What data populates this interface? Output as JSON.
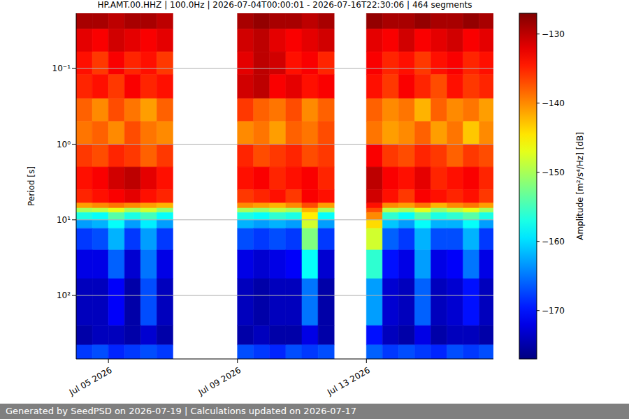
{
  "chart_data": {
    "type": "heatmap",
    "title": "HP.AMT.00.HHZ | 100.0Hz | 2026-07-04T00:00:01 - 2026-07-16T22:30:06 | 464 segments",
    "footer": "Generated by SeedPSD on 2026-07-19 | Calculations updated on 2026-07-17",
    "y_label": "Period [s]",
    "log": "y",
    "grid": "y",
    "xlim": [
      "2026-07-04T00:00",
      "2026-07-16T22:30"
    ],
    "xticks": [
      {
        "value": "2026-07-05T00:00",
        "label": "Jul 05 2026"
      },
      {
        "value": "2026-07-09T00:00",
        "label": "Jul 09 2026"
      },
      {
        "value": "2026-07-13T00:00",
        "label": "Jul 13 2026"
      }
    ],
    "ylim": [
      0.0186,
      690
    ],
    "yticks": [
      {
        "value": 0.1,
        "label": "10⁻¹"
      },
      {
        "value": 1,
        "label": "10⁰"
      },
      {
        "value": 10,
        "label": "10¹"
      },
      {
        "value": 100,
        "label": "10²"
      }
    ],
    "time_edges": [
      "2026-07-04T00:00",
      "2026-07-04T12:00",
      "2026-07-05T00:00",
      "2026-07-05T12:00",
      "2026-07-06T00:00",
      "2026-07-06T12:00",
      "2026-07-07T00:00",
      "2026-07-07T12:00",
      "2026-07-08T00:00",
      "2026-07-08T12:00",
      "2026-07-09T00:00",
      "2026-07-09T12:00",
      "2026-07-10T00:00",
      "2026-07-10T12:00",
      "2026-07-11T00:00",
      "2026-07-11T12:00",
      "2026-07-12T00:00",
      "2026-07-12T12:00",
      "2026-07-13T00:00",
      "2026-07-13T12:00",
      "2026-07-14T00:00",
      "2026-07-14T12:00",
      "2026-07-15T00:00",
      "2026-07-15T12:00",
      "2026-07-16T00:00",
      "2026-07-16T12:00",
      "2026-07-16T22:30"
    ],
    "period_edges": [
      0.0186,
      0.03,
      0.06,
      0.12,
      0.25,
      0.5,
      1,
      2,
      4,
      6,
      7,
      8,
      10,
      13,
      25,
      60,
      250,
      450,
      690
    ],
    "cells": [
      [
        -129,
        -129,
        -130,
        -129,
        -129,
        -130,
        null,
        null,
        null,
        null,
        -129,
        -128,
        -129,
        -129,
        -130,
        -129,
        null,
        null,
        -128,
        -129,
        -129,
        -128,
        -129,
        -129,
        -128,
        -129
      ],
      [
        -132,
        -133,
        -131,
        -132,
        -133,
        -132,
        null,
        null,
        null,
        null,
        -131,
        -130,
        -132,
        -133,
        -132,
        -131,
        null,
        null,
        -132,
        -133,
        -131,
        -133,
        -132,
        -131,
        -133,
        -132
      ],
      [
        -134,
        -136,
        -133,
        -135,
        -134,
        -136,
        null,
        null,
        null,
        null,
        -132,
        -130,
        -131,
        -134,
        -133,
        -135,
        null,
        null,
        -133,
        -135,
        -134,
        -136,
        -134,
        -133,
        -135,
        -134
      ],
      [
        -135,
        -134,
        -136,
        -133,
        -135,
        -134,
        null,
        null,
        null,
        null,
        -131,
        -130,
        -133,
        -132,
        -134,
        -133,
        null,
        null,
        -134,
        -136,
        -133,
        -135,
        -137,
        -134,
        -136,
        -135
      ],
      [
        -138,
        -140,
        -137,
        -139,
        -141,
        -138,
        null,
        null,
        null,
        null,
        -136,
        -138,
        -139,
        -137,
        -140,
        -138,
        null,
        null,
        -138,
        -140,
        -139,
        -142,
        -138,
        -140,
        -139,
        -141
      ],
      [
        -139,
        -138,
        -140,
        -137,
        -139,
        -140,
        null,
        null,
        null,
        null,
        -140,
        -139,
        -141,
        -138,
        -139,
        -137,
        null,
        null,
        -139,
        -141,
        -140,
        -138,
        -141,
        -139,
        -143,
        -140
      ],
      [
        -136,
        -137,
        -135,
        -136,
        -138,
        -136,
        null,
        null,
        null,
        null,
        -135,
        -137,
        -136,
        -135,
        -137,
        -136,
        null,
        null,
        -133,
        -136,
        -137,
        -135,
        -136,
        -138,
        -136,
        -137
      ],
      [
        -134,
        -133,
        -131,
        -130,
        -132,
        -134,
        null,
        null,
        null,
        null,
        -134,
        -133,
        -135,
        -134,
        -133,
        -135,
        null,
        null,
        -130,
        -133,
        -134,
        -132,
        -135,
        -134,
        -133,
        -135
      ],
      [
        -135,
        -134,
        -133,
        -132,
        -134,
        -135,
        null,
        null,
        null,
        null,
        -136,
        -135,
        -134,
        -136,
        -133,
        -134,
        null,
        null,
        -131,
        -134,
        -136,
        -133,
        -134,
        -135,
        -134,
        -136
      ],
      [
        -141,
        -140,
        -139,
        -140,
        -141,
        -142,
        null,
        null,
        null,
        null,
        -140,
        -141,
        -142,
        -140,
        -137,
        -141,
        null,
        null,
        -134,
        -140,
        -141,
        -139,
        -142,
        -140,
        -139,
        -141
      ],
      [
        -150,
        -149,
        -147,
        -150,
        -148,
        -151,
        null,
        null,
        null,
        null,
        -150,
        -151,
        -149,
        -150,
        -142,
        -150,
        null,
        null,
        -137,
        -149,
        -150,
        -147,
        -151,
        -149,
        -147,
        -150
      ],
      [
        -157,
        -158,
        -154,
        -157,
        -155,
        -158,
        null,
        null,
        null,
        null,
        -157,
        -158,
        -156,
        -157,
        -145,
        -158,
        null,
        null,
        -140,
        -156,
        -158,
        -154,
        -157,
        -156,
        -154,
        -157
      ],
      [
        -163,
        -162,
        -158,
        -163,
        -159,
        -163,
        null,
        null,
        null,
        null,
        -162,
        -163,
        -162,
        -163,
        -148,
        -163,
        null,
        null,
        -144,
        -161,
        -163,
        -158,
        -162,
        -162,
        -158,
        -163
      ],
      [
        -168,
        -167,
        -162,
        -168,
        -163,
        -168,
        null,
        null,
        null,
        null,
        -167,
        -168,
        -167,
        -168,
        -152,
        -168,
        null,
        null,
        -148,
        -166,
        -168,
        -162,
        -167,
        -167,
        -162,
        -168
      ],
      [
        -172,
        -172,
        -166,
        -173,
        -165,
        -172,
        null,
        null,
        null,
        null,
        -172,
        -173,
        -172,
        -171,
        -158,
        -173,
        null,
        null,
        -156,
        -170,
        -172,
        -163,
        -172,
        -171,
        -165,
        -172
      ],
      [
        -174,
        -174,
        -171,
        -175,
        -167,
        -174,
        null,
        null,
        null,
        null,
        -174,
        -175,
        -174,
        -174,
        -165,
        -175,
        null,
        null,
        -163,
        -173,
        -174,
        -166,
        -174,
        -173,
        -170,
        -174
      ],
      [
        -175,
        -174,
        -174,
        -175,
        -173,
        -175,
        null,
        null,
        null,
        null,
        -175,
        -174,
        -175,
        -175,
        -172,
        -175,
        null,
        null,
        -170,
        -174,
        -175,
        -172,
        -175,
        -174,
        -174,
        -175
      ],
      [
        -168,
        -167,
        -169,
        -168,
        -167,
        -168,
        null,
        null,
        null,
        null,
        -167,
        -168,
        -169,
        -167,
        -168,
        -167,
        null,
        null,
        -166,
        -168,
        -167,
        -168,
        -169,
        -167,
        -168,
        -167
      ]
    ],
    "colorbar": {
      "label": "Amplitude [m²/s⁴/Hz] [dB]",
      "range": [
        -177,
        -127
      ],
      "ticks": [
        {
          "value": -170,
          "label": "−170"
        },
        {
          "value": -160,
          "label": "−160"
        },
        {
          "value": -150,
          "label": "−150"
        },
        {
          "value": -140,
          "label": "−140"
        },
        {
          "value": -130,
          "label": "−130"
        }
      ]
    }
  }
}
